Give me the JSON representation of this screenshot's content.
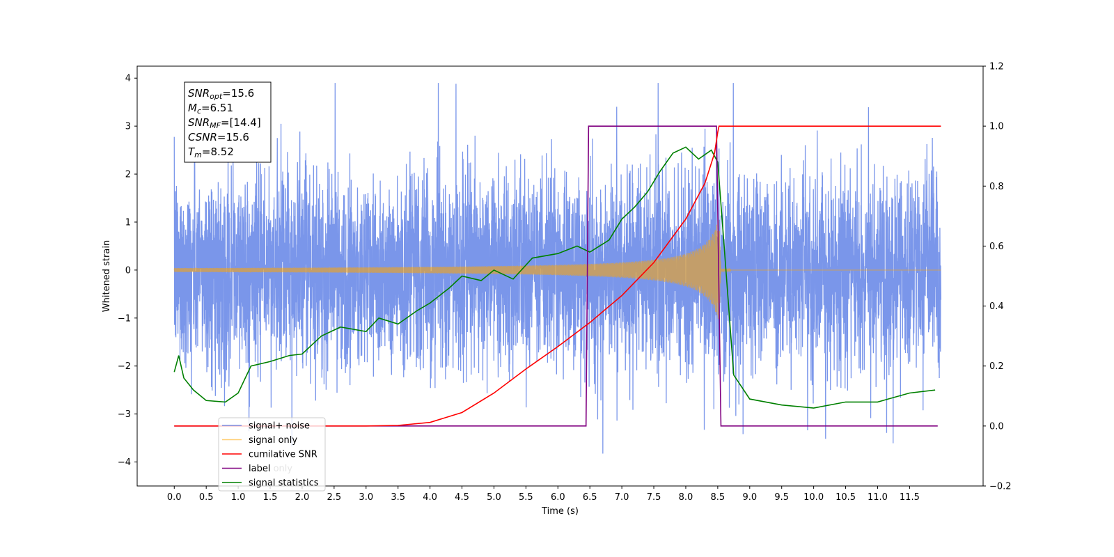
{
  "chart_data": {
    "type": "line",
    "xlabel": "Time (s)",
    "ylabel": "Whitened strain",
    "xlim": [
      -0.58,
      12.65
    ],
    "ylim": [
      -4.5,
      4.25
    ],
    "y2lim": [
      -0.2,
      1.2
    ],
    "x_ticks": [
      0.0,
      0.5,
      1.0,
      1.5,
      2.0,
      2.5,
      3.0,
      3.5,
      4.0,
      4.5,
      5.0,
      5.5,
      6.0,
      6.5,
      7.0,
      7.5,
      8.0,
      8.5,
      9.0,
      9.5,
      10.0,
      10.5,
      11.0,
      11.5
    ],
    "x_tick_labels": [
      "0.0",
      "0.5",
      "1.0",
      "1.5",
      "2.0",
      "2.5",
      "3.0",
      "3.5",
      "4.0",
      "4.5",
      "5.0",
      "5.5",
      "6.0",
      "6.5",
      "7.0",
      "7.5",
      "8.0",
      "8.5",
      "9.0",
      "9.5",
      "10.0",
      "10.5",
      "11.0",
      "11.5"
    ],
    "y_ticks": [
      -4,
      -3,
      -2,
      -1,
      0,
      1,
      2,
      3,
      4
    ],
    "y_tick_labels": [
      "−4",
      "−3",
      "−2",
      "−1",
      "0",
      "1",
      "2",
      "3",
      "4"
    ],
    "y2_ticks": [
      -0.2,
      0.0,
      0.2,
      0.4,
      0.6,
      0.8,
      1.0,
      1.2
    ],
    "y2_tick_labels": [
      "−0.2",
      "0.0",
      "0.2",
      "0.4",
      "0.6",
      "0.8",
      "1.0",
      "1.2"
    ],
    "grid": false,
    "legend_placement": "lower-left",
    "annotation_box": [
      {
        "base": "SNR",
        "sub": "opt",
        "value": "=15.6"
      },
      {
        "base": "M",
        "sub": "c",
        "value": "=6.51"
      },
      {
        "base": "SNR",
        "sub": "MF",
        "value": "=[14.4]"
      },
      {
        "base": "CSNR",
        "sub": "",
        "value": "=15.6"
      },
      {
        "base": "T",
        "sub": "m",
        "value": "=8.52"
      }
    ],
    "noise_model": {
      "duration": 11.99,
      "std": 1.0
    },
    "signal_model": {
      "merger_time": 8.52,
      "end_time": 8.55,
      "ringdown_end": 8.7,
      "peak_amplitude": 1.1
    },
    "series": [
      {
        "name": "signal+ noise",
        "color": "#4169e1",
        "axis": "left"
      },
      {
        "name": "signal only",
        "color": "#ffa500",
        "axis": "left"
      },
      {
        "name": "cumilative SNR",
        "color": "#ff0000",
        "axis": "right",
        "x": [
          0.0,
          3.0,
          3.5,
          4.0,
          4.5,
          5.0,
          5.5,
          6.0,
          6.5,
          7.0,
          7.5,
          8.0,
          8.3,
          8.45,
          8.5,
          8.52,
          11.99
        ],
        "y": [
          0.0,
          0.0,
          0.002,
          0.012,
          0.045,
          0.11,
          0.19,
          0.265,
          0.345,
          0.435,
          0.545,
          0.69,
          0.81,
          0.91,
          0.98,
          1.0,
          1.0
        ]
      },
      {
        "name": "label",
        "color": "#800080",
        "axis": "right",
        "x": [
          0.0,
          6.44,
          6.48,
          8.48,
          8.55,
          11.94
        ],
        "y": [
          0.0,
          0.0,
          1.0,
          1.0,
          0.0,
          0.0
        ]
      },
      {
        "name": "signal statistics",
        "color": "#008000",
        "axis": "right",
        "x": [
          0.0,
          0.07,
          0.15,
          0.3,
          0.5,
          0.8,
          1.0,
          1.2,
          1.5,
          1.8,
          2.0,
          2.3,
          2.6,
          3.0,
          3.2,
          3.5,
          3.8,
          4.0,
          4.3,
          4.5,
          4.8,
          5.0,
          5.3,
          5.6,
          6.0,
          6.3,
          6.5,
          6.8,
          7.0,
          7.2,
          7.4,
          7.6,
          7.8,
          8.0,
          8.2,
          8.4,
          8.5,
          8.6,
          8.75,
          9.0,
          9.5,
          10.0,
          10.5,
          11.0,
          11.5,
          11.9
        ],
        "y": [
          0.18,
          0.235,
          0.16,
          0.12,
          0.085,
          0.08,
          0.11,
          0.2,
          0.215,
          0.235,
          0.24,
          0.3,
          0.33,
          0.315,
          0.36,
          0.34,
          0.385,
          0.41,
          0.46,
          0.5,
          0.485,
          0.52,
          0.49,
          0.56,
          0.575,
          0.6,
          0.58,
          0.62,
          0.69,
          0.73,
          0.78,
          0.85,
          0.91,
          0.93,
          0.89,
          0.92,
          0.88,
          0.6,
          0.17,
          0.09,
          0.07,
          0.06,
          0.08,
          0.08,
          0.11,
          0.12
        ]
      }
    ],
    "legend_entries": [
      "signal+ noise",
      "signal only",
      "cumilative SNR",
      "label",
      "signal statistics"
    ],
    "legend_hidden_text": "label only"
  }
}
